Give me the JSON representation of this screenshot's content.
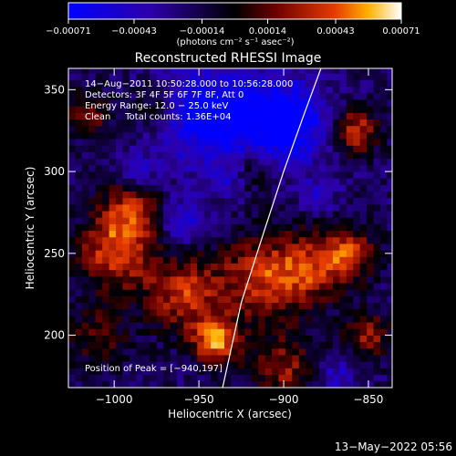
{
  "chart_data": {
    "type": "heatmap",
    "title": "Reconstructed RHESSI Image",
    "xlabel": "Heliocentric X (arcsec)",
    "ylabel": "Heliocentric Y (arcsec)",
    "xlim": [
      -1027,
      -836
    ],
    "ylim": [
      168,
      363
    ],
    "x_ticks": [
      -1000,
      -950,
      -900,
      -850
    ],
    "y_ticks": [
      200,
      250,
      300,
      350
    ],
    "x_tick_labels": [
      "−1000",
      "−950",
      "−900",
      "−850"
    ],
    "y_tick_labels": [
      "200",
      "250",
      "300",
      "350"
    ],
    "colorbar": {
      "range": [
        -0.00071,
        0.00071
      ],
      "ticks": [
        -0.00071,
        -0.00043,
        -0.00014,
        0.00014,
        0.00043,
        0.00071
      ],
      "tick_labels": [
        "−0.00071",
        "−0.00043",
        "−0.00014",
        "0.00014",
        "0.00043",
        "0.00071"
      ],
      "unit_label": "(photons cm⁻² s⁻¹ asec⁻²)",
      "colors": [
        "#0000ff",
        "#2d00a8",
        "#000000",
        "#6a0000",
        "#e63b00",
        "#ffb000",
        "#ffffff"
      ]
    },
    "annotations": [
      "14−Aug−2011 10:50:28.000 to 10:56:28.000",
      "Detectors: 3F 4F 5F 6F 7F 8F, Att 0",
      "Energy Range: 12.0 − 25.0 keV",
      "Clean     Total counts: 1.36E+04"
    ],
    "peak_label": "Position of Peak = [−940,197]",
    "peak_position": [
      -940,
      197
    ],
    "limb_curve": [
      [
        -936,
        168
      ],
      [
        -925,
        220
      ],
      [
        -912,
        262
      ],
      [
        -900,
        300
      ],
      [
        -888,
        335
      ],
      [
        -878,
        363
      ]
    ],
    "timestamp": "13−May−2022 05:56",
    "hot_spots": [
      {
        "x": -940,
        "y": 197,
        "r": 14,
        "v": 1.0
      },
      {
        "x": -1000,
        "y": 250,
        "r": 22,
        "v": 0.8
      },
      {
        "x": -990,
        "y": 275,
        "r": 18,
        "v": 0.7
      },
      {
        "x": -960,
        "y": 225,
        "r": 22,
        "v": 0.75
      },
      {
        "x": -915,
        "y": 235,
        "r": 26,
        "v": 0.7
      },
      {
        "x": -885,
        "y": 240,
        "r": 22,
        "v": 0.65
      },
      {
        "x": -858,
        "y": 325,
        "r": 14,
        "v": 0.8
      },
      {
        "x": -862,
        "y": 250,
        "r": 16,
        "v": 0.7
      },
      {
        "x": -850,
        "y": 200,
        "r": 14,
        "v": 0.6
      },
      {
        "x": -900,
        "y": 180,
        "r": 20,
        "v": 0.6
      },
      {
        "x": -1015,
        "y": 335,
        "r": 14,
        "v": 0.5
      },
      {
        "x": -975,
        "y": 340,
        "r": 14,
        "v": 0.45
      },
      {
        "x": -920,
        "y": 300,
        "r": 14,
        "v": 0.5
      },
      {
        "x": -1010,
        "y": 200,
        "r": 20,
        "v": 0.4
      }
    ],
    "cold_spots": [
      {
        "x": -945,
        "y": 335,
        "r": 30,
        "v": -0.8
      },
      {
        "x": -900,
        "y": 330,
        "r": 26,
        "v": -0.9
      },
      {
        "x": -960,
        "y": 270,
        "r": 14,
        "v": -0.5
      },
      {
        "x": -930,
        "y": 295,
        "r": 12,
        "v": -0.4
      },
      {
        "x": -880,
        "y": 285,
        "r": 10,
        "v": -0.4
      },
      {
        "x": -985,
        "y": 300,
        "r": 10,
        "v": -0.4
      },
      {
        "x": -870,
        "y": 175,
        "r": 12,
        "v": -0.4
      }
    ]
  }
}
